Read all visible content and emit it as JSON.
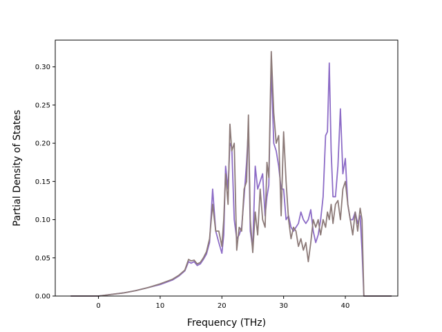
{
  "chart_data": {
    "type": "line",
    "xlabel": "Frequency (THz)",
    "ylabel": "Partial Density of States",
    "xlim": [
      -7,
      48.5
    ],
    "ylim": [
      0,
      0.335
    ],
    "xticks": [
      0,
      10,
      20,
      30,
      40
    ],
    "yticks": [
      0.0,
      0.05,
      0.1,
      0.15,
      0.2,
      0.25,
      0.3
    ],
    "xtick_labels": [
      "0",
      "10",
      "20",
      "30",
      "40"
    ],
    "ytick_labels": [
      "0.00",
      "0.05",
      "0.10",
      "0.15",
      "0.20",
      "0.25",
      "0.30"
    ],
    "grid": false,
    "legend": "none",
    "series": [
      {
        "color": "#8c6bc6",
        "x": [
          -4.5,
          0,
          2,
          4,
          6,
          8,
          10,
          12,
          13,
          14,
          14.6,
          15,
          15.5,
          16,
          16.5,
          17,
          17.5,
          18,
          18.5,
          19,
          19.5,
          20,
          20.3,
          20.6,
          21,
          21.3,
          21.6,
          22,
          22.4,
          22.8,
          23.2,
          23.6,
          24,
          24.3,
          24.6,
          25,
          25.4,
          25.8,
          26.2,
          26.6,
          27,
          27.3,
          27.6,
          28,
          28.4,
          28.8,
          29.2,
          29.6,
          30,
          30.4,
          30.8,
          31.2,
          31.6,
          32,
          32.4,
          32.8,
          33.2,
          33.6,
          34,
          34.4,
          34.8,
          35.2,
          35.6,
          36,
          36.4,
          36.8,
          37.1,
          37.4,
          37.7,
          38,
          38.4,
          38.8,
          39.2,
          39.6,
          40,
          40.4,
          40.8,
          41.2,
          41.6,
          42,
          42.4,
          42.7,
          43,
          43.3,
          47.5
        ],
        "y": [
          0.0,
          0.0,
          0.002,
          0.004,
          0.007,
          0.011,
          0.015,
          0.021,
          0.026,
          0.033,
          0.045,
          0.043,
          0.045,
          0.04,
          0.042,
          0.048,
          0.055,
          0.07,
          0.14,
          0.085,
          0.07,
          0.056,
          0.08,
          0.17,
          0.14,
          0.2,
          0.195,
          0.1,
          0.075,
          0.08,
          0.09,
          0.13,
          0.175,
          0.22,
          0.085,
          0.062,
          0.17,
          0.14,
          0.15,
          0.16,
          0.105,
          0.13,
          0.145,
          0.3,
          0.2,
          0.19,
          0.17,
          0.14,
          0.14,
          0.1,
          0.105,
          0.09,
          0.085,
          0.09,
          0.095,
          0.11,
          0.1,
          0.095,
          0.1,
          0.113,
          0.085,
          0.07,
          0.08,
          0.1,
          0.13,
          0.21,
          0.215,
          0.305,
          0.19,
          0.13,
          0.13,
          0.17,
          0.245,
          0.16,
          0.18,
          0.12,
          0.1,
          0.1,
          0.11,
          0.095,
          0.105,
          0.06,
          0.0,
          0.0,
          0.0
        ],
        "__note": ""
      },
      {
        "color": "#8c7a78",
        "x": [
          -4.5,
          0,
          2,
          4,
          6,
          8,
          10,
          12,
          13,
          14,
          14.6,
          15,
          15.5,
          16,
          16.5,
          17,
          17.5,
          18,
          18.5,
          19,
          19.5,
          20,
          20.3,
          20.6,
          21,
          21.3,
          21.6,
          22,
          22.4,
          22.8,
          23.2,
          23.6,
          24,
          24.3,
          24.6,
          25,
          25.4,
          25.8,
          26.2,
          26.6,
          27,
          27.3,
          27.6,
          28,
          28.4,
          28.8,
          29.2,
          29.6,
          30,
          30.4,
          30.8,
          31.2,
          31.6,
          32,
          32.4,
          32.8,
          33.2,
          33.6,
          34,
          34.4,
          34.8,
          35.2,
          35.6,
          36,
          36.4,
          36.8,
          37.1,
          37.4,
          37.7,
          38,
          38.4,
          38.8,
          39.2,
          39.6,
          40,
          40.4,
          40.8,
          41.2,
          41.6,
          42,
          42.4,
          42.7,
          43,
          43.3,
          47.5
        ],
        "y": [
          0.0,
          0.0,
          0.002,
          0.004,
          0.007,
          0.011,
          0.016,
          0.022,
          0.027,
          0.034,
          0.048,
          0.046,
          0.047,
          0.042,
          0.044,
          0.05,
          0.058,
          0.075,
          0.12,
          0.085,
          0.085,
          0.065,
          0.1,
          0.16,
          0.12,
          0.225,
          0.19,
          0.2,
          0.06,
          0.09,
          0.085,
          0.14,
          0.15,
          0.237,
          0.1,
          0.057,
          0.11,
          0.08,
          0.14,
          0.1,
          0.09,
          0.175,
          0.155,
          0.32,
          0.24,
          0.2,
          0.21,
          0.105,
          0.215,
          0.15,
          0.1,
          0.075,
          0.09,
          0.085,
          0.065,
          0.075,
          0.06,
          0.07,
          0.045,
          0.07,
          0.1,
          0.09,
          0.1,
          0.08,
          0.1,
          0.09,
          0.11,
          0.1,
          0.12,
          0.095,
          0.12,
          0.125,
          0.1,
          0.14,
          0.15,
          0.12,
          0.1,
          0.08,
          0.11,
          0.085,
          0.115,
          0.1,
          0.0,
          0.0,
          0.0
        ]
      }
    ]
  }
}
